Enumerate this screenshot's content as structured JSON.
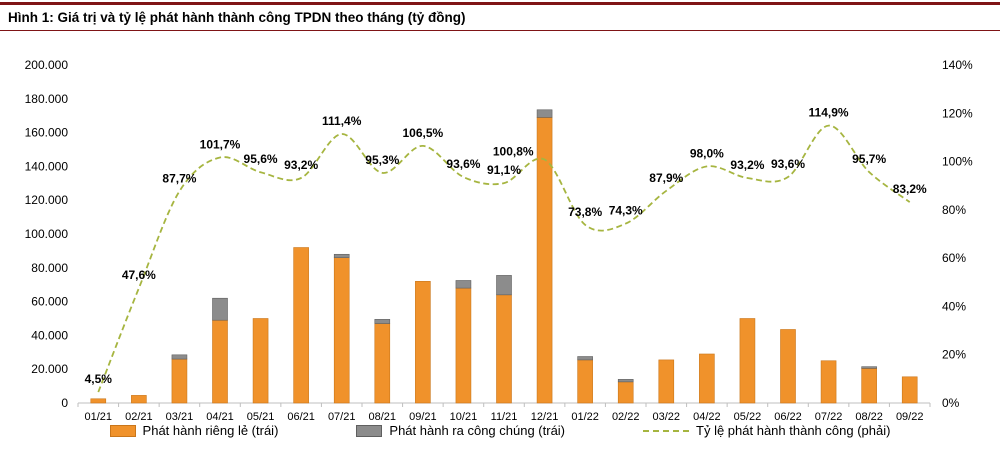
{
  "header": {
    "title": "Hình 1: Giá trị và tỷ lệ phát hành thành công TPDN theo tháng (tỷ đồng)"
  },
  "colors": {
    "bar_private": "#F0922B",
    "bar_private_border": "#C9761B",
    "bar_public": "#8C8C8C",
    "bar_public_border": "#5F5F5F",
    "rate_line": "#A6B540",
    "axis_line": "#BFBFBF",
    "title_rule": "#7F1416",
    "label_text": "#000000",
    "background": "#FFFFFF"
  },
  "legend": {
    "items": [
      {
        "label": "Phát hành riêng lẻ (trái)",
        "swatch": "bar_private"
      },
      {
        "label": "Phát hành ra công chúng (trái)",
        "swatch": "bar_public"
      },
      {
        "label": "Tỷ lệ phát hành thành công (phải)",
        "swatch": "rate_line_dashed"
      }
    ]
  },
  "chart_data": {
    "type": "bar",
    "title": "Hình 1: Giá trị và tỷ lệ phát hành thành công TPDN theo tháng (tỷ đồng)",
    "grid": false,
    "legend_position": "bottom",
    "categories": [
      "01/21",
      "02/21",
      "03/21",
      "04/21",
      "05/21",
      "06/21",
      "07/21",
      "08/21",
      "09/21",
      "10/21",
      "11/21",
      "12/21",
      "01/22",
      "02/22",
      "03/22",
      "04/22",
      "05/22",
      "06/22",
      "07/22",
      "08/22",
      "09/22"
    ],
    "series": [
      {
        "name": "Phát hành riêng lẻ (trái)",
        "type": "bar",
        "stack": "issuance",
        "axis": "left",
        "values": [
          2500,
          4500,
          26000,
          49000,
          50000,
          92000,
          86000,
          47000,
          72000,
          68000,
          64000,
          169000,
          25500,
          12500,
          25500,
          29000,
          50000,
          43500,
          25000,
          20500,
          15500
        ]
      },
      {
        "name": "Phát hành ra công chúng (trái)",
        "type": "bar",
        "stack": "issuance",
        "axis": "left",
        "values": [
          0,
          0,
          2500,
          13000,
          0,
          0,
          2000,
          2500,
          0,
          4500,
          11500,
          4500,
          2000,
          1500,
          0,
          0,
          0,
          0,
          0,
          1000,
          0
        ]
      },
      {
        "name": "Tỷ lệ phát hành thành công (phải)",
        "type": "line",
        "style": "dashed",
        "axis": "right",
        "values_percent": [
          4.5,
          47.6,
          87.7,
          101.7,
          95.6,
          93.2,
          111.4,
          95.3,
          106.5,
          93.6,
          91.1,
          100.8,
          73.8,
          74.3,
          87.9,
          98.0,
          93.2,
          93.6,
          114.9,
          95.7,
          83.2
        ],
        "point_labels": [
          "4,5%",
          "47,6%",
          "87,7%",
          "101,7%",
          "95,6%",
          "93,2%",
          "111,4%",
          "95,3%",
          "106,5%",
          "93,6%",
          "91,1%",
          "100,8%",
          "73,8%",
          "74,3%",
          "87,9%",
          "98,0%",
          "93,2%",
          "93,6%",
          "114,9%",
          "95,7%",
          "83,2%"
        ]
      }
    ],
    "left_axis": {
      "min": 0,
      "max": 200000,
      "step": 20000,
      "tick_labels": [
        "0",
        "20.000",
        "40.000",
        "60.000",
        "80.000",
        "100.000",
        "120.000",
        "140.000",
        "160.000",
        "180.000",
        "200.000"
      ]
    },
    "right_axis": {
      "min": 0,
      "max": 140,
      "step": 20,
      "tick_labels": [
        "0%",
        "20%",
        "40%",
        "60%",
        "80%",
        "100%",
        "120%",
        "140%"
      ]
    }
  }
}
